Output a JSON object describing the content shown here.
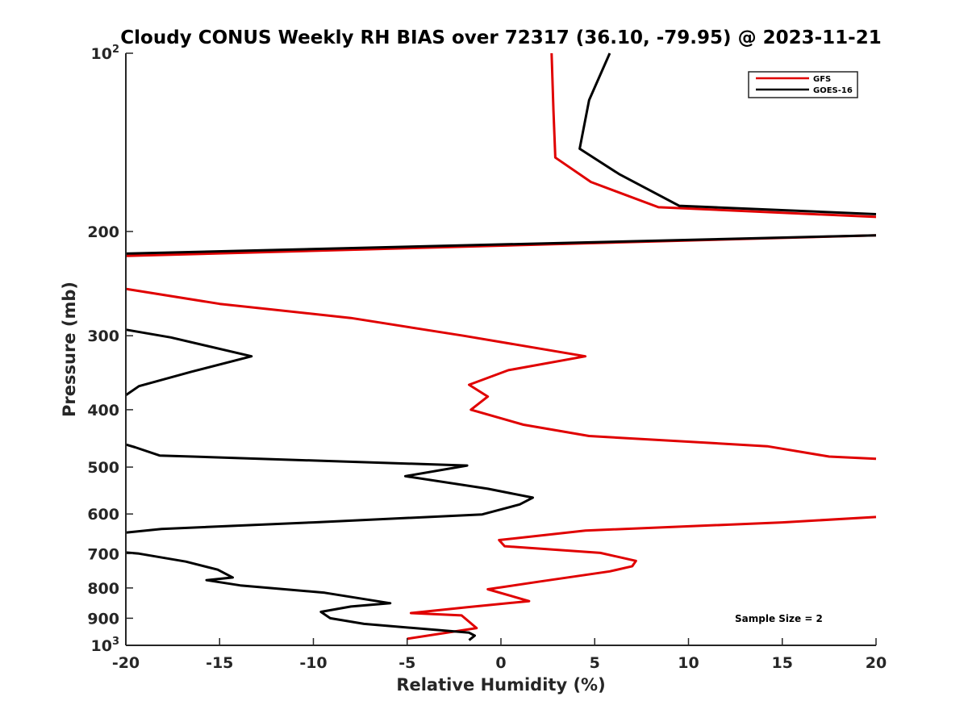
{
  "chart_data": {
    "type": "line",
    "title": "Cloudy CONUS Weekly RH BIAS over 72317 (36.10, -79.95) @ 2023-11-21",
    "xlabel": "Relative Humidity (%)",
    "ylabel": "Pressure (mb)",
    "xlim": [
      -20,
      20
    ],
    "ylim": [
      1000,
      100
    ],
    "y_scale": "log",
    "y_reversed": true,
    "grid": false,
    "legend_position": "top-right",
    "x_ticks": [
      "-20",
      "-15",
      "-10",
      "-5",
      "0",
      "5",
      "10",
      "15",
      "20"
    ],
    "x_tick_values": [
      -20,
      -15,
      -10,
      -5,
      0,
      5,
      10,
      15,
      20
    ],
    "y_ticks": [
      {
        "value": 100,
        "base": "10",
        "exp": "2"
      },
      {
        "value": 200,
        "label": "200"
      },
      {
        "value": 300,
        "label": "300"
      },
      {
        "value": 400,
        "label": "400"
      },
      {
        "value": 500,
        "label": "500"
      },
      {
        "value": 600,
        "label": "600"
      },
      {
        "value": 700,
        "label": "700"
      },
      {
        "value": 800,
        "label": "800"
      },
      {
        "value": 900,
        "label": "900"
      },
      {
        "value": 1000,
        "base": "10",
        "exp": "3"
      }
    ],
    "series": [
      {
        "name": "GFS",
        "color": "#e00000",
        "segments": [
          [
            [
              2.7,
              100
            ],
            [
              2.8,
              125
            ],
            [
              2.9,
              150
            ],
            [
              4.8,
              165
            ],
            [
              8.4,
              182
            ],
            [
              20,
              189
            ]
          ],
          [
            [
              20,
              203
            ],
            [
              -20,
              220
            ]
          ],
          [
            [
              -20,
              250
            ],
            [
              -15,
              265
            ],
            [
              -8,
              280
            ],
            [
              -2,
              300
            ],
            [
              4.5,
              325
            ],
            [
              0.4,
              343
            ],
            [
              -1.7,
              363
            ],
            [
              -0.7,
              380
            ],
            [
              -1.6,
              400
            ],
            [
              1.2,
              424
            ],
            [
              4.7,
              443
            ],
            [
              14.2,
              461
            ],
            [
              17.5,
              480
            ],
            [
              20,
              484
            ]
          ],
          [
            [
              20,
              607
            ],
            [
              15,
              620
            ],
            [
              4.5,
              640
            ],
            [
              -0.1,
              664
            ],
            [
              0.2,
              680
            ],
            [
              5.3,
              698
            ],
            [
              7.2,
              720
            ],
            [
              7.0,
              735
            ],
            [
              5.8,
              750
            ],
            [
              2.1,
              780
            ],
            [
              -0.7,
              804
            ],
            [
              1.5,
              842
            ],
            [
              -1.8,
              862
            ],
            [
              -4.8,
              882
            ],
            [
              -2.1,
              890
            ],
            [
              -1.3,
              935
            ],
            [
              -5.0,
              975
            ]
          ]
        ]
      },
      {
        "name": "GOES-16",
        "color": "#000000",
        "segments": [
          [
            [
              5.8,
              100
            ],
            [
              4.7,
              120
            ],
            [
              4.2,
              145
            ],
            [
              6.3,
              160
            ],
            [
              9.5,
              181
            ],
            [
              20,
              187
            ]
          ],
          [
            [
              20,
              203
            ],
            [
              -20,
              218
            ]
          ],
          [
            [
              -20,
              293
            ],
            [
              -17.6,
              302
            ],
            [
              -13.3,
              325
            ],
            [
              -16.5,
              345
            ],
            [
              -19.3,
              365
            ],
            [
              -20,
              378
            ]
          ],
          [
            [
              -20,
              458
            ],
            [
              -19.5,
              463
            ],
            [
              -18.2,
              478
            ],
            [
              -1.8,
              497
            ],
            [
              -5.1,
              518
            ],
            [
              -0.7,
              544
            ],
            [
              1.7,
              563
            ],
            [
              1.0,
              578
            ],
            [
              -1.0,
              601
            ],
            [
              -10,
              620
            ],
            [
              -18.1,
              636
            ],
            [
              -20,
              645
            ]
          ],
          [
            [
              -20,
              697
            ],
            [
              -19.3,
              700
            ],
            [
              -16.8,
              722
            ],
            [
              -15.1,
              745
            ],
            [
              -14.3,
              768
            ],
            [
              -15.7,
              776
            ],
            [
              -13.9,
              792
            ],
            [
              -9.4,
              815
            ],
            [
              -5.9,
              849
            ],
            [
              -8.0,
              860
            ],
            [
              -9.6,
              878
            ],
            [
              -9.1,
              900
            ],
            [
              -7.3,
              920
            ],
            [
              -1.7,
              952
            ],
            [
              -1.4,
              963
            ],
            [
              -1.7,
              980
            ]
          ]
        ]
      }
    ],
    "annotations": [
      {
        "text": "Sample Size = 2",
        "position": "bottom-right"
      }
    ]
  }
}
